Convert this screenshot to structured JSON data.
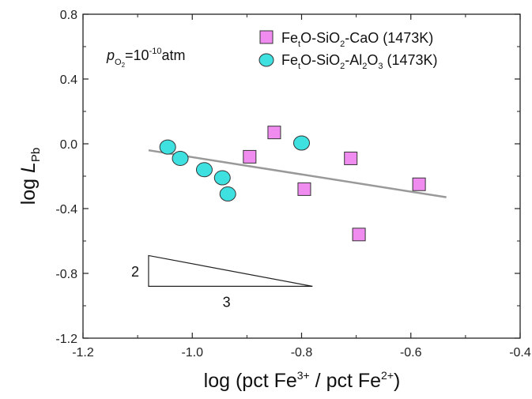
{
  "chart_data": {
    "type": "scatter",
    "xlim": [
      -1.2,
      -0.4
    ],
    "ylim": [
      -1.2,
      0.8
    ],
    "x_ticks": [
      -1.2,
      -1.0,
      -0.8,
      -0.6,
      -0.4
    ],
    "y_ticks": [
      -1.2,
      -0.8,
      -0.4,
      0.0,
      0.4,
      0.8
    ],
    "x_tick_labels": [
      "-1.2",
      "-1.0",
      "-0.8",
      "-0.6",
      "-0.4"
    ],
    "y_tick_labels": [
      "-1.2",
      "-0.8",
      "-0.4",
      "0.0",
      "0.4",
      "0.8"
    ],
    "xlabel": {
      "prefix": "log (pct Fe",
      "sup1": "3+",
      "middle": " / pct Fe",
      "sup2": "2+",
      "suffix": ")"
    },
    "ylabel": {
      "prefix": "log ",
      "italic": "L",
      "sub": "Pb"
    },
    "legend": "top-right",
    "annotation": {
      "p": "p",
      "sub": "O",
      "subsub": "2",
      "eq": "=10",
      "sup": "-10",
      "unit": "atm"
    },
    "series": [
      {
        "name": {
          "a": "Fe",
          "b": "t",
          "c": "O-SiO",
          "d": "2",
          "e": "-CaO (1473K)"
        },
        "marker": "square",
        "color": "#f08cf0",
        "x": [
          -0.895,
          -0.85,
          -0.795,
          -0.71,
          -0.695,
          -0.585
        ],
        "y": [
          -0.08,
          0.07,
          -0.28,
          -0.09,
          -0.56,
          -0.25
        ]
      },
      {
        "name": {
          "a": "Fe",
          "b": "t",
          "c": "O-SiO",
          "d": "2",
          "e": "-Al",
          "f": "2",
          "g": "O",
          "h": "3",
          "i": " (1473K)"
        },
        "marker": "circle",
        "color": "#3fe0e0",
        "x": [
          -1.045,
          -1.022,
          -0.978,
          -0.945,
          -0.935,
          -0.8
        ],
        "y": [
          -0.02,
          -0.09,
          -0.16,
          -0.21,
          -0.31,
          0.005
        ]
      }
    ],
    "trend_line": {
      "x": [
        -1.08,
        -0.535
      ],
      "y": [
        -0.04,
        -0.33
      ],
      "color": "#999999"
    },
    "slope_triangle": {
      "points": [
        [
          -1.08,
          -0.69
        ],
        [
          -1.08,
          -0.88
        ],
        [
          -0.78,
          -0.88
        ]
      ],
      "label_vertical": "2",
      "label_horizontal": "3"
    }
  }
}
